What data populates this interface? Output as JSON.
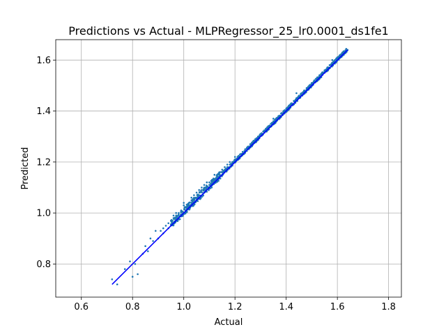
{
  "chart_data": {
    "type": "scatter",
    "title": "Predictions vs Actual - MLPRegressor_25_lr0.0001_ds1fe1",
    "xlabel": "Actual",
    "ylabel": "Predicted",
    "xlim": [
      0.5,
      1.85
    ],
    "ylim": [
      0.67,
      1.68
    ],
    "xticks": [
      0.6,
      0.8,
      1.0,
      1.2,
      1.4,
      1.6,
      1.8
    ],
    "xtick_labels": [
      "0.6",
      "0.8",
      "1.0",
      "1.2",
      "1.4",
      "1.6",
      "1.8"
    ],
    "yticks": [
      0.8,
      1.0,
      1.2,
      1.4,
      1.6
    ],
    "ytick_labels": [
      "0.8",
      "1.0",
      "1.2",
      "1.4",
      "1.6"
    ],
    "grid": true,
    "colors": {
      "points": "#1f77b4",
      "line": "#0000ff"
    },
    "reference_line": {
      "x": [
        0.72,
        1.64
      ],
      "y": [
        0.72,
        1.64
      ]
    },
    "points": {
      "x": [
        0.72,
        0.74,
        0.77,
        0.8,
        0.81,
        0.82,
        0.84,
        0.86,
        0.88,
        0.9,
        0.91,
        0.92,
        0.93,
        0.94,
        0.95,
        0.96,
        0.97,
        0.98,
        0.99,
        1.0,
        1.01,
        1.02,
        1.03,
        1.04,
        1.05,
        1.06,
        1.07,
        1.08,
        1.09,
        1.1,
        1.11,
        1.12,
        1.13,
        1.14,
        1.15,
        1.16,
        1.17,
        1.18,
        1.19,
        1.2,
        1.21,
        1.22,
        1.23,
        1.24,
        1.25,
        1.26,
        1.27,
        1.28,
        1.29,
        1.3,
        1.31,
        1.32,
        1.33,
        1.34,
        1.35,
        1.36,
        1.37,
        1.38,
        1.39,
        1.4,
        1.41,
        1.42,
        1.43,
        1.44,
        1.45,
        1.46,
        1.47,
        1.48,
        1.49,
        1.5,
        1.51,
        1.52,
        1.53,
        1.54,
        1.55,
        1.56,
        1.57,
        1.58,
        1.59,
        1.6,
        1.61,
        1.62,
        1.63,
        1.64,
        0.79,
        0.85,
        0.89,
        0.94,
        0.97,
        1.0,
        1.03,
        1.06,
        1.08,
        1.1,
        1.12,
        1.14,
        1.16,
        1.18,
        1.2,
        1.22,
        1.24,
        1.26,
        1.28,
        1.3,
        1.33,
        1.36,
        1.39,
        1.42,
        1.45,
        1.48,
        1.51,
        1.54,
        1.57,
        1.6,
        1.05,
        1.07,
        1.09,
        1.11,
        1.13,
        1.15,
        1.17,
        1.25,
        1.35,
        1.44,
        1.5,
        1.55,
        1.58,
        1.62,
        0.87,
        0.92,
        0.96,
        1.02,
        1.04
      ],
      "y": [
        0.74,
        0.72,
        0.78,
        0.75,
        0.8,
        0.76,
        0.84,
        0.85,
        0.89,
        0.9,
        0.93,
        0.92,
        0.95,
        0.94,
        0.97,
        0.98,
        0.99,
        1.0,
        1.01,
        1.03,
        1.02,
        1.04,
        1.05,
        1.06,
        1.05,
        1.07,
        1.09,
        1.08,
        1.1,
        1.11,
        1.12,
        1.13,
        1.14,
        1.16,
        1.15,
        1.17,
        1.18,
        1.19,
        1.2,
        1.21,
        1.22,
        1.23,
        1.24,
        1.25,
        1.26,
        1.27,
        1.28,
        1.29,
        1.3,
        1.31,
        1.32,
        1.33,
        1.34,
        1.35,
        1.36,
        1.37,
        1.38,
        1.39,
        1.4,
        1.41,
        1.42,
        1.43,
        1.44,
        1.45,
        1.46,
        1.47,
        1.48,
        1.49,
        1.5,
        1.51,
        1.52,
        1.53,
        1.54,
        1.55,
        1.56,
        1.57,
        1.58,
        1.59,
        1.6,
        1.61,
        1.62,
        1.62,
        1.63,
        1.64,
        0.81,
        0.87,
        0.93,
        0.96,
        1.0,
        1.04,
        1.06,
        1.09,
        1.11,
        1.12,
        1.15,
        1.16,
        1.18,
        1.2,
        1.22,
        1.23,
        1.25,
        1.27,
        1.29,
        1.31,
        1.34,
        1.37,
        1.4,
        1.43,
        1.46,
        1.49,
        1.52,
        1.55,
        1.58,
        1.61,
        1.08,
        1.1,
        1.12,
        1.13,
        1.15,
        1.17,
        1.19,
        1.26,
        1.37,
        1.47,
        1.51,
        1.56,
        1.6,
        1.63,
        0.9,
        0.94,
        0.99,
        1.04,
        1.07
      ]
    }
  }
}
